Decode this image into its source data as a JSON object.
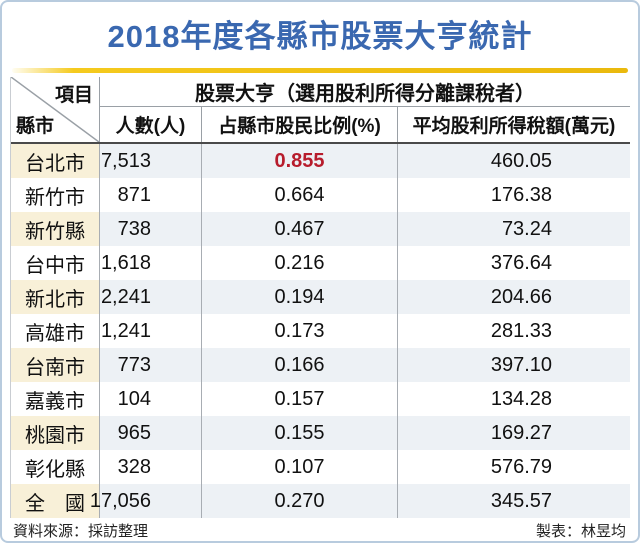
{
  "title": "2018年度各縣市股票大亨統計",
  "colors": {
    "title_blue": "#3a68b0",
    "gold_rule": "#efc013",
    "stripe_row_bg": "#edf1f5",
    "county_cell_bg": "#f8f0d8",
    "highlight_red": "#b71c2c",
    "frame_border": "#b8cbde"
  },
  "table": {
    "corner": {
      "top_right": "項目",
      "bottom_left": "縣市"
    },
    "group_header": "股票大亨（選用股利所得分離課稅者）",
    "columns": [
      "人數(人)",
      "占縣市股民比例(%)",
      "平均股利所得稅額(萬元)"
    ],
    "rows": [
      {
        "county": "台北市",
        "count": "7,513",
        "ratio": "0.855",
        "tax": "460.05",
        "highlight": true
      },
      {
        "county": "新竹市",
        "count": "871",
        "ratio": "0.664",
        "tax": "176.38",
        "highlight": false
      },
      {
        "county": "新竹縣",
        "count": "738",
        "ratio": "0.467",
        "tax": "73.24",
        "highlight": false
      },
      {
        "county": "台中市",
        "count": "1,618",
        "ratio": "0.216",
        "tax": "376.64",
        "highlight": false
      },
      {
        "county": "新北市",
        "count": "2,241",
        "ratio": "0.194",
        "tax": "204.66",
        "highlight": false
      },
      {
        "county": "高雄市",
        "count": "1,241",
        "ratio": "0.173",
        "tax": "281.33",
        "highlight": false
      },
      {
        "county": "台南市",
        "count": "773",
        "ratio": "0.166",
        "tax": "397.10",
        "highlight": false
      },
      {
        "county": "嘉義市",
        "count": "104",
        "ratio": "0.157",
        "tax": "134.28",
        "highlight": false
      },
      {
        "county": "桃園市",
        "count": "965",
        "ratio": "0.155",
        "tax": "169.27",
        "highlight": false
      },
      {
        "county": "彰化縣",
        "count": "328",
        "ratio": "0.107",
        "tax": "576.79",
        "highlight": false
      },
      {
        "county": "全　國",
        "count": "17,056",
        "ratio": "0.270",
        "tax": "345.57",
        "highlight": false
      }
    ]
  },
  "footer": {
    "source": "資料來源：採訪整理",
    "credit": "製表：林昱均"
  },
  "chart_data": {
    "type": "table",
    "title": "2018年度各縣市股票大亨統計",
    "group_header": "股票大亨（選用股利所得分離課稅者）",
    "row_header_label": "縣市",
    "column_header_label": "項目",
    "columns": [
      "人數(人)",
      "占縣市股民比例(%)",
      "平均股利所得稅額(萬元)"
    ],
    "categories": [
      "台北市",
      "新竹市",
      "新竹縣",
      "台中市",
      "新北市",
      "高雄市",
      "台南市",
      "嘉義市",
      "桃園市",
      "彰化縣",
      "全國"
    ],
    "series": [
      {
        "name": "人數(人)",
        "values": [
          7513,
          871,
          738,
          1618,
          2241,
          1241,
          773,
          104,
          965,
          328,
          17056
        ]
      },
      {
        "name": "占縣市股民比例(%)",
        "values": [
          0.855,
          0.664,
          0.467,
          0.216,
          0.194,
          0.173,
          0.166,
          0.157,
          0.155,
          0.107,
          0.27
        ]
      },
      {
        "name": "平均股利所得稅額(萬元)",
        "values": [
          460.05,
          176.38,
          73.24,
          376.64,
          204.66,
          281.33,
          397.1,
          134.28,
          169.27,
          576.79,
          345.57
        ]
      }
    ],
    "annotations": [
      "最高比例0.855(台北市)以紅色標示"
    ]
  }
}
